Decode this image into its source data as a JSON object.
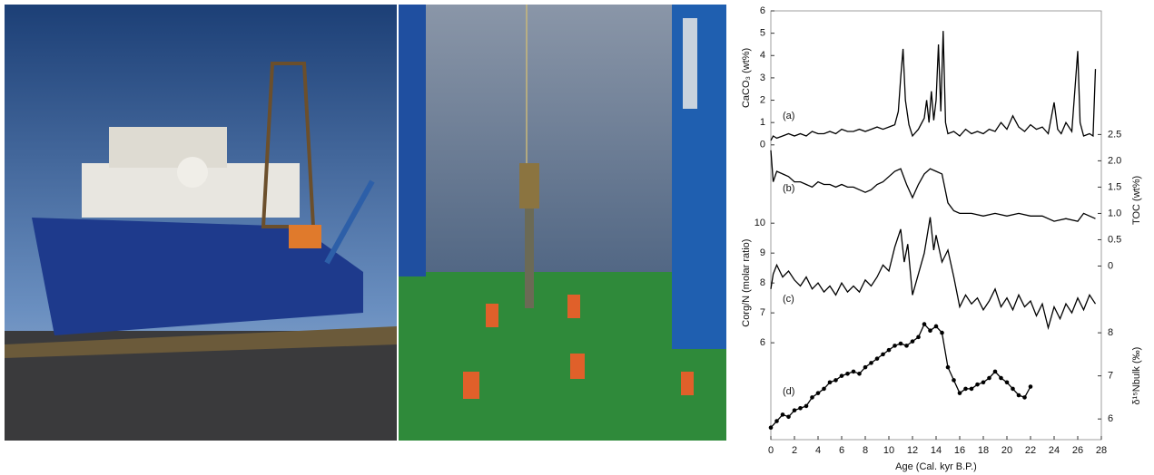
{
  "chart_data": [
    {
      "type": "line",
      "panel_label": "(a)",
      "ylabel": "CaCO₃ (wt%)",
      "axis": "left",
      "color": "#000000",
      "xlim": [
        0,
        28
      ],
      "ylim": [
        -13.2,
        6
      ],
      "yticks": [
        0,
        1,
        2,
        3,
        4,
        5,
        6
      ],
      "x": [
        0,
        0.2,
        0.5,
        1,
        1.5,
        2,
        2.5,
        3,
        3.5,
        4,
        4.5,
        5,
        5.5,
        6,
        6.5,
        7,
        7.5,
        8,
        8.5,
        9,
        9.5,
        10,
        10.5,
        10.8,
        11,
        11.2,
        11.4,
        11.7,
        12,
        12.5,
        13,
        13.2,
        13.4,
        13.6,
        13.8,
        14,
        14.2,
        14.4,
        14.6,
        14.8,
        15,
        15.5,
        16,
        16.5,
        17,
        17.5,
        18,
        18.5,
        19,
        19.5,
        20,
        20.5,
        21,
        21.5,
        22,
        22.5,
        23,
        23.5,
        24,
        24.3,
        24.6,
        25,
        25.5,
        26,
        26.2,
        26.5,
        27,
        27.3,
        27.5
      ],
      "values": [
        0.2,
        0.4,
        0.3,
        0.4,
        0.5,
        0.4,
        0.5,
        0.4,
        0.6,
        0.5,
        0.5,
        0.6,
        0.5,
        0.7,
        0.6,
        0.6,
        0.7,
        0.6,
        0.7,
        0.8,
        0.7,
        0.8,
        0.9,
        1.5,
        3.0,
        4.3,
        2.0,
        0.9,
        0.4,
        0.7,
        1.2,
        2.0,
        1.0,
        2.4,
        1.1,
        2.0,
        4.5,
        1.5,
        5.1,
        1.0,
        0.5,
        0.6,
        0.4,
        0.7,
        0.5,
        0.6,
        0.5,
        0.7,
        0.6,
        1.0,
        0.7,
        1.3,
        0.8,
        0.6,
        0.9,
        0.7,
        0.8,
        0.5,
        1.9,
        0.7,
        0.5,
        1.0,
        0.6,
        4.2,
        1.0,
        0.4,
        0.5,
        0.4,
        3.4
      ]
    },
    {
      "type": "line",
      "panel_label": "(b)",
      "ylabel": "TOC (wt%)",
      "axis": "right",
      "color": "#000000",
      "xlim": [
        0,
        28
      ],
      "ylim": [
        -3.3,
        4.85
      ],
      "yticks": [
        0,
        0.5,
        {
          "value": 1,
          "label": "1.0"
        },
        1.5,
        {
          "value": 2,
          "label": "2.0"
        },
        2.5
      ],
      "x": [
        0,
        0.2,
        0.5,
        1,
        1.5,
        2,
        2.5,
        3,
        3.5,
        4,
        4.5,
        5,
        5.5,
        6,
        6.5,
        7,
        7.5,
        8,
        8.5,
        9,
        9.5,
        10,
        10.5,
        11,
        11.5,
        12,
        12.5,
        13,
        13.5,
        14,
        14.5,
        15,
        15.5,
        16,
        17,
        18,
        19,
        20,
        21,
        22,
        23,
        24,
        25,
        26,
        26.5,
        27,
        27.5
      ],
      "values": [
        2.2,
        1.6,
        1.8,
        1.75,
        1.7,
        1.6,
        1.6,
        1.55,
        1.5,
        1.6,
        1.55,
        1.55,
        1.5,
        1.55,
        1.5,
        1.5,
        1.45,
        1.4,
        1.45,
        1.55,
        1.6,
        1.7,
        1.8,
        1.85,
        1.55,
        1.3,
        1.55,
        1.75,
        1.85,
        1.8,
        1.75,
        1.2,
        1.05,
        1.0,
        1.0,
        0.95,
        1.0,
        0.95,
        1.0,
        0.95,
        0.95,
        0.85,
        0.9,
        0.85,
        1.0,
        0.95,
        0.9
      ]
    },
    {
      "type": "line",
      "panel_label": "(c)",
      "ylabel": "Corg/N (molar ratio)",
      "axis": "left",
      "color": "#000000",
      "xlim": [
        0,
        28
      ],
      "ylim": [
        2.76,
        17.1
      ],
      "yticks": [
        6,
        7,
        8,
        9,
        10
      ],
      "x": [
        0,
        0.2,
        0.5,
        1,
        1.5,
        2,
        2.5,
        3,
        3.5,
        4,
        4.5,
        5,
        5.5,
        6,
        6.5,
        7,
        7.5,
        8,
        8.5,
        9,
        9.5,
        10,
        10.5,
        11,
        11.3,
        11.6,
        12,
        12.5,
        13,
        13.5,
        13.8,
        14,
        14.5,
        15,
        15.5,
        16,
        16.5,
        17,
        17.5,
        18,
        18.5,
        19,
        19.5,
        20,
        20.5,
        21,
        21.5,
        22,
        22.5,
        23,
        23.5,
        24,
        24.5,
        25,
        25.5,
        26,
        26.5,
        27,
        27.5
      ],
      "values": [
        7.8,
        8.3,
        8.6,
        8.2,
        8.4,
        8.1,
        7.9,
        8.2,
        7.8,
        8.0,
        7.7,
        7.9,
        7.6,
        8.0,
        7.7,
        7.9,
        7.7,
        8.1,
        7.9,
        8.2,
        8.6,
        8.4,
        9.2,
        9.8,
        8.7,
        9.3,
        7.6,
        8.3,
        9.0,
        10.2,
        9.1,
        9.6,
        8.7,
        9.1,
        8.2,
        7.2,
        7.6,
        7.3,
        7.5,
        7.1,
        7.4,
        7.8,
        7.2,
        7.5,
        7.1,
        7.6,
        7.2,
        7.4,
        6.9,
        7.3,
        6.5,
        7.2,
        6.8,
        7.3,
        7.0,
        7.5,
        7.1,
        7.6,
        7.3
      ]
    },
    {
      "type": "line",
      "markers": true,
      "panel_label": "(d)",
      "ylabel": "δ¹⁵Nbulk (‰)",
      "axis": "right",
      "color": "#000000",
      "xlim": [
        0,
        28
      ],
      "ylim": [
        5.52,
        15.47
      ],
      "yticks": [
        6,
        7,
        8
      ],
      "xticks": [
        0,
        2,
        4,
        6,
        8,
        10,
        12,
        14,
        16,
        18,
        20,
        22,
        24,
        26,
        28
      ],
      "xlabel": "Age (Cal. kyr B.P.)",
      "x": [
        0,
        0.5,
        1,
        1.5,
        2,
        2.5,
        3,
        3.5,
        4,
        4.5,
        5,
        5.5,
        6,
        6.5,
        7,
        7.5,
        8,
        8.5,
        9,
        9.5,
        10,
        10.5,
        11,
        11.5,
        12,
        12.5,
        13,
        13.5,
        14,
        14.5,
        15,
        15.5,
        16,
        16.5,
        17,
        17.5,
        18,
        18.5,
        19,
        19.5,
        20,
        20.5,
        21,
        21.5,
        22
      ],
      "values": [
        5.8,
        5.95,
        6.1,
        6.05,
        6.2,
        6.25,
        6.3,
        6.5,
        6.6,
        6.7,
        6.85,
        6.9,
        7.0,
        7.05,
        7.1,
        7.05,
        7.2,
        7.3,
        7.4,
        7.5,
        7.6,
        7.7,
        7.75,
        7.7,
        7.8,
        7.9,
        8.2,
        8.05,
        8.15,
        8.0,
        7.2,
        6.9,
        6.6,
        6.7,
        6.7,
        6.8,
        6.85,
        6.95,
        7.1,
        6.95,
        6.85,
        6.7,
        6.55,
        6.5,
        6.75
      ]
    }
  ]
}
